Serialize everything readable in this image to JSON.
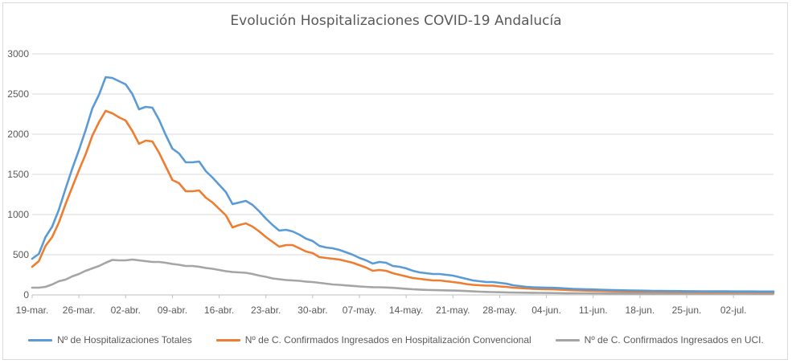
{
  "chart_data": {
    "type": "line",
    "title": "Evolución Hospitalizaciones COVID-19 Andalucía",
    "xlabel": "",
    "ylabel": "",
    "ylim": [
      0,
      3000
    ],
    "yticks": [
      "0",
      "500",
      "1000",
      "1500",
      "2000",
      "2500",
      "3000"
    ],
    "x_tick_labels": [
      "19-mar.",
      "26-mar.",
      "02-abr.",
      "09-abr.",
      "16-abr.",
      "23-abr.",
      "30-abr.",
      "07-may.",
      "14-may.",
      "21-may.",
      "28-may.",
      "04-jun.",
      "11-jun.",
      "18-jun.",
      "25-jun.",
      "02-jul."
    ],
    "x_start": "19-mar.",
    "grid": true,
    "legend_position": "bottom",
    "series": [
      {
        "name": "Nº de Hospitalizaciones Totales",
        "color": "#5b9bd5",
        "values": [
          450,
          510,
          720,
          850,
          1060,
          1320,
          1570,
          1800,
          2050,
          2320,
          2490,
          2710,
          2700,
          2660,
          2620,
          2500,
          2310,
          2340,
          2330,
          2180,
          1990,
          1820,
          1760,
          1650,
          1650,
          1660,
          1540,
          1460,
          1370,
          1280,
          1130,
          1150,
          1170,
          1120,
          1040,
          950,
          870,
          800,
          810,
          790,
          750,
          700,
          670,
          610,
          590,
          580,
          560,
          530,
          500,
          460,
          430,
          390,
          410,
          400,
          360,
          350,
          330,
          300,
          280,
          270,
          260,
          260,
          250,
          240,
          220,
          200,
          180,
          170,
          160,
          160,
          150,
          140,
          120,
          110,
          100,
          95,
          92,
          90,
          88,
          85,
          80,
          75,
          72,
          70,
          68,
          65,
          62,
          60,
          58,
          56,
          55,
          53,
          52,
          50,
          50,
          48,
          48,
          47,
          46,
          46,
          45,
          45,
          45,
          44,
          44,
          43,
          43,
          43,
          43,
          42,
          42,
          42
        ]
      },
      {
        "name": "Nº de C. Confirmados Ingresados en Hospitalización Convencional",
        "color": "#ed7d31",
        "values": [
          350,
          420,
          610,
          720,
          900,
          1130,
          1340,
          1550,
          1750,
          1980,
          2150,
          2290,
          2260,
          2210,
          2170,
          2040,
          1880,
          1920,
          1910,
          1770,
          1600,
          1430,
          1390,
          1290,
          1290,
          1300,
          1210,
          1150,
          1070,
          990,
          840,
          870,
          890,
          850,
          790,
          720,
          660,
          600,
          620,
          620,
          580,
          540,
          520,
          470,
          460,
          450,
          440,
          420,
          400,
          370,
          340,
          300,
          310,
          300,
          270,
          250,
          230,
          210,
          200,
          190,
          180,
          180,
          170,
          160,
          150,
          135,
          125,
          120,
          115,
          115,
          105,
          100,
          90,
          85,
          80,
          76,
          73,
          71,
          69,
          66,
          62,
          58,
          55,
          53,
          52,
          50,
          48,
          46,
          44,
          43,
          42,
          41,
          40,
          39,
          39,
          38,
          38,
          37,
          37,
          37,
          36,
          36,
          36,
          35,
          35,
          35,
          35,
          35,
          35,
          34,
          34,
          34
        ]
      },
      {
        "name": "Nº de C. Confirmados Ingresados en UCI.",
        "color": "#a5a5a5",
        "values": [
          90,
          90,
          100,
          130,
          170,
          190,
          230,
          260,
          300,
          330,
          360,
          400,
          435,
          430,
          430,
          440,
          430,
          420,
          410,
          410,
          400,
          385,
          375,
          360,
          360,
          350,
          335,
          325,
          310,
          295,
          285,
          280,
          275,
          260,
          240,
          225,
          205,
          195,
          185,
          180,
          175,
          165,
          160,
          150,
          140,
          130,
          125,
          118,
          112,
          105,
          100,
          96,
          95,
          92,
          88,
          82,
          76,
          70,
          66,
          62,
          60,
          58,
          56,
          54,
          52,
          48,
          44,
          40,
          37,
          35,
          33,
          31,
          29,
          28,
          27,
          26,
          25,
          24,
          23,
          22,
          21,
          21,
          20,
          20,
          19,
          19,
          18,
          18,
          18,
          17,
          17,
          17,
          17,
          16,
          16,
          16,
          16,
          16,
          15,
          15,
          15,
          15,
          15,
          15,
          15,
          15,
          15,
          15,
          14,
          14,
          14,
          14
        ]
      }
    ]
  }
}
